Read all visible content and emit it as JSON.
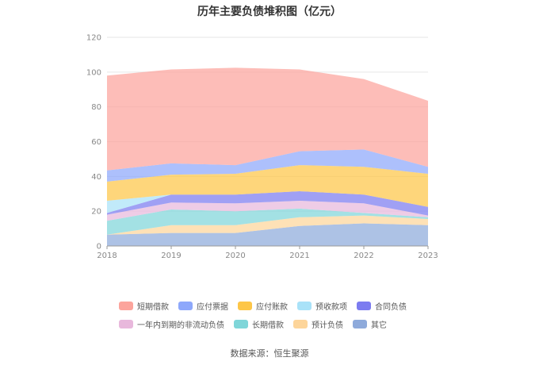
{
  "chart_data": {
    "type": "area",
    "title": "历年主要负债堆积图（亿元）",
    "x": [
      "2018",
      "2019",
      "2020",
      "2021",
      "2022",
      "2023"
    ],
    "ylim": [
      0,
      120
    ],
    "yticks": [
      0,
      20,
      40,
      60,
      80,
      100,
      120
    ],
    "grid": true,
    "legend_position": "bottom",
    "stacked": true,
    "series": [
      {
        "name": "其它",
        "color": "#8eaadb",
        "values": [
          6.5,
          7.5,
          7.5,
          11.5,
          13,
          12
        ]
      },
      {
        "name": "预计负债",
        "color": "#fdd59a",
        "values": [
          0,
          4.5,
          4.5,
          5,
          4.5,
          3.5
        ]
      },
      {
        "name": "长期借款",
        "color": "#7fd6d9",
        "values": [
          8,
          9,
          8,
          5,
          1.5,
          1
        ]
      },
      {
        "name": "一年内到期的非流动负债",
        "color": "#e8b8dc",
        "values": [
          3.5,
          4,
          4.5,
          4.5,
          5.5,
          1
        ]
      },
      {
        "name": "合同负债",
        "color": "#7c7cf0",
        "values": [
          1,
          4.5,
          5,
          5.5,
          5,
          5
        ]
      },
      {
        "name": "预收款项",
        "color": "#a9e2f8",
        "values": [
          7,
          0,
          0,
          0,
          0,
          0
        ]
      },
      {
        "name": "应付账款",
        "color": "#fdc648",
        "values": [
          11,
          11.5,
          12,
          15,
          16,
          19
        ]
      },
      {
        "name": "应付票据",
        "color": "#8ea8fb",
        "values": [
          6.5,
          6.5,
          5,
          8,
          10,
          4
        ]
      },
      {
        "name": "短期借款",
        "color": "#fca49c",
        "values": [
          54.5,
          54,
          56,
          47,
          40.5,
          38
        ]
      }
    ],
    "legend_order": [
      "短期借款",
      "应付票据",
      "应付账款",
      "预收款项",
      "合同负债",
      "一年内到期的非流动负债",
      "长期借款",
      "预计负债",
      "其它"
    ]
  },
  "source": "数据来源：恒生聚源"
}
